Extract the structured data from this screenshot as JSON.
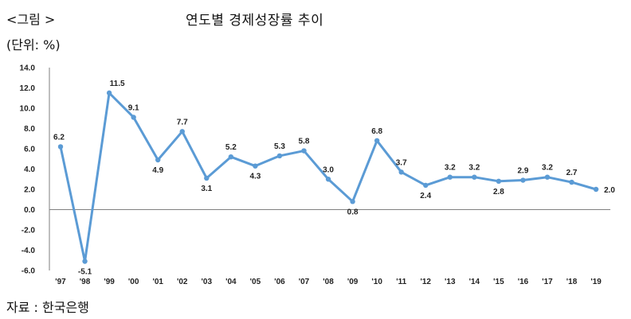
{
  "header": {
    "figure_label": "<그림 >",
    "title": "연도별 경제성장률 추이",
    "unit": "(단위: %)"
  },
  "footer": {
    "source": "자료 : 한국은행"
  },
  "chart_data": {
    "type": "line",
    "title": "연도별 경제성장률 추이",
    "xlabel": "",
    "ylabel": "",
    "categories": [
      "'97",
      "'98",
      "'99",
      "'00",
      "'01",
      "'02",
      "'03",
      "'04",
      "'05",
      "'06",
      "'07",
      "'08",
      "'09",
      "'10",
      "'11",
      "'12",
      "'13",
      "'14",
      "'15",
      "'16",
      "'17",
      "'18",
      "'19"
    ],
    "series": [
      {
        "values": [
          6.2,
          -5.1,
          11.5,
          9.1,
          4.9,
          7.7,
          3.1,
          5.2,
          4.3,
          5.3,
          5.8,
          3.0,
          0.8,
          6.8,
          3.7,
          2.4,
          3.2,
          3.2,
          2.8,
          2.9,
          3.2,
          2.7,
          2.0
        ],
        "value_labels": [
          "6.2",
          "-5.1",
          "11.5",
          "9.1",
          "4.9",
          "7.7",
          "3.1",
          "5.2",
          "4.3",
          "5.3",
          "5.8",
          "3.0",
          "0.8",
          "6.8",
          "3.7",
          "2.4",
          "3.2",
          "3.2",
          "2.8",
          "2.9",
          "3.2",
          "2.7",
          "2.0"
        ]
      }
    ],
    "ylim": [
      -6.0,
      14.0
    ],
    "y_ticks": [
      "14.0",
      "12.0",
      "10.0",
      "8.0",
      "6.0",
      "4.0",
      "2.0",
      "0.0",
      "-2.0",
      "-4.0",
      "-6.0"
    ],
    "y_tick_values": [
      14,
      12,
      10,
      8,
      6,
      4,
      2,
      0,
      -2,
      -4,
      -6
    ],
    "grid": false,
    "legend": "none",
    "colors": {
      "line": "#5b9bd5",
      "axis": "#7f7f7f"
    }
  }
}
